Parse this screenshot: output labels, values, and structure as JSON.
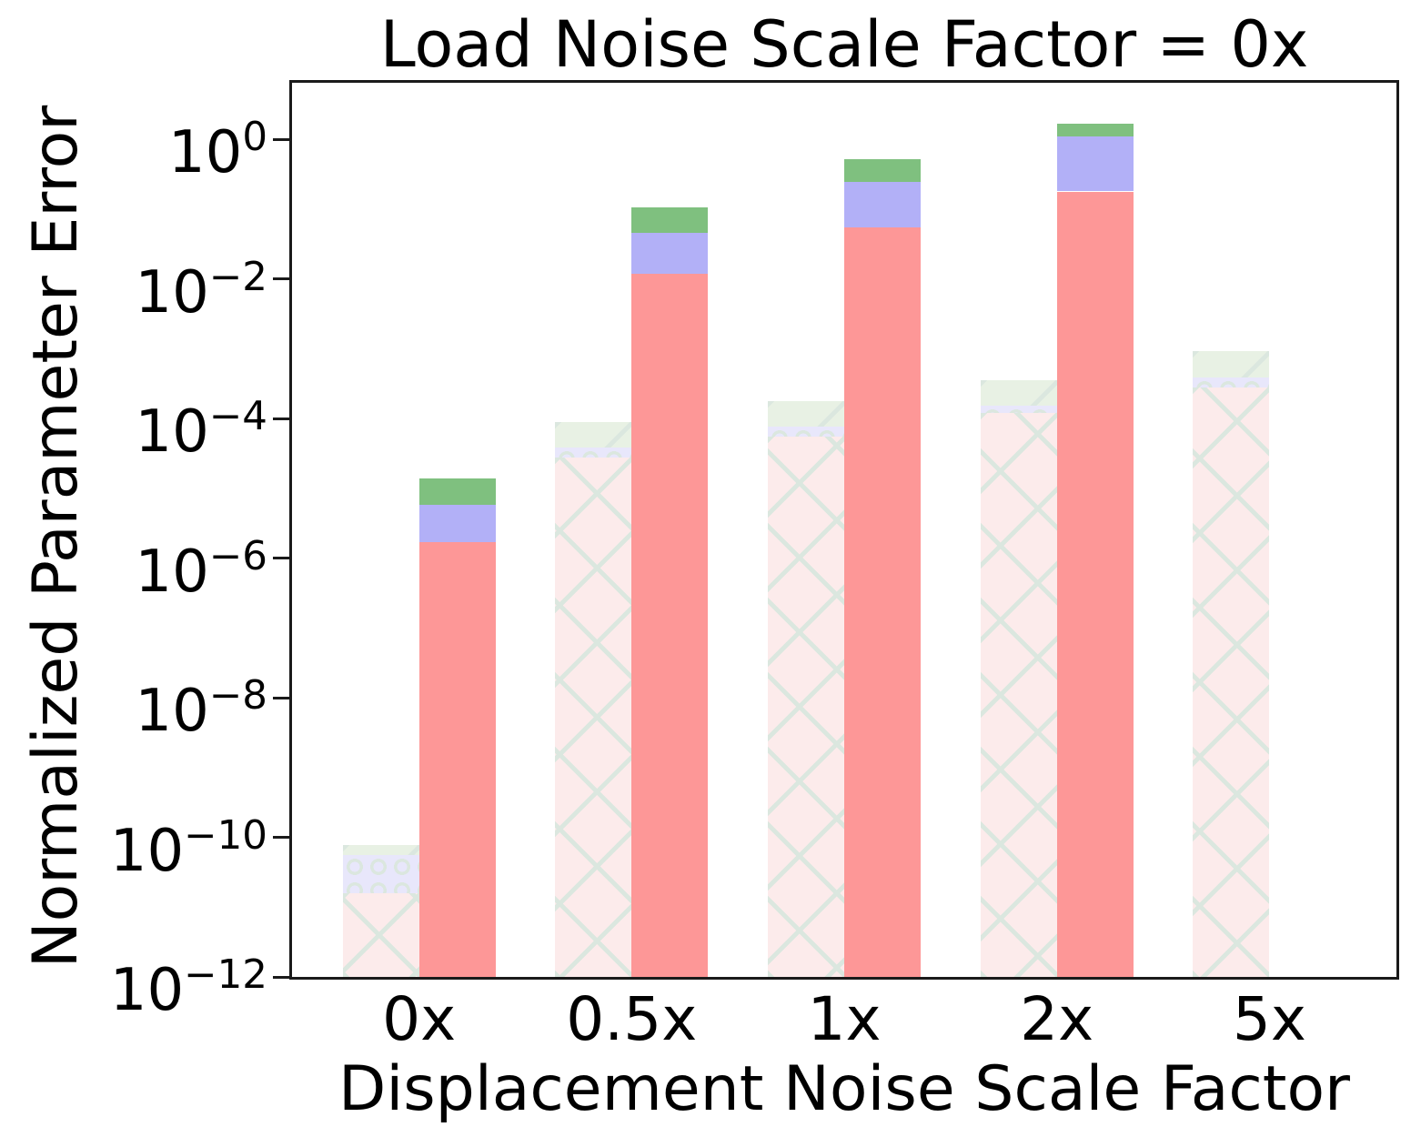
{
  "title": "Load Noise Scale Factor = 0x",
  "chart_data": {
    "type": "bar",
    "subtype": "grouped-stacked-log",
    "title": "Load Noise Scale Factor = 0x",
    "xlabel": "Displacement Noise Scale Factor",
    "ylabel": "Normalized Parameter Error",
    "yscale": "log",
    "ylim": [
      1e-12,
      6.5
    ],
    "grid": false,
    "legend": "none-visible",
    "ytick_exponents": [
      0,
      -2,
      -4,
      -6,
      -8,
      -10,
      -12
    ],
    "categories": [
      "0x",
      "0.5x",
      "1x",
      "2x",
      "5x"
    ],
    "segment_order": [
      "red",
      "blue",
      "green"
    ],
    "bar_variants": [
      "hatched-faded (left bar)",
      "solid (right bar)"
    ],
    "groups": [
      {
        "category": "0x",
        "hatched": {
          "red_top": 1.6e-11,
          "blue_top": 5.6e-11,
          "total": 7.8e-11
        },
        "solid": {
          "red_top": 1.7e-06,
          "blue_top": 5.8e-06,
          "total": 1.4e-05
        }
      },
      {
        "category": "0.5x",
        "hatched": {
          "red_top": 2.8e-05,
          "blue_top": 3.8e-05,
          "total": 9e-05
        },
        "solid": {
          "red_top": 0.012,
          "blue_top": 0.046,
          "total": 0.105
        }
      },
      {
        "category": "1x",
        "hatched": {
          "red_top": 5.6e-05,
          "blue_top": 7.8e-05,
          "total": 0.00018
        },
        "solid": {
          "red_top": 0.055,
          "blue_top": 0.25,
          "total": 0.52
        }
      },
      {
        "category": "2x",
        "hatched": {
          "red_top": 0.00012,
          "blue_top": 0.000155,
          "total": 0.00036
        },
        "solid": {
          "red_top": 0.18,
          "blue_top": 1.1,
          "total": 1.7
        }
      },
      {
        "category": "5x",
        "hatched": {
          "red_top": 0.00028,
          "blue_top": 0.00039,
          "total": 0.00093
        },
        "solid": null
      }
    ],
    "colors": {
      "solid_red": "#fd9797",
      "solid_blue": "#b2b0f7",
      "solid_green": "#7fc07f",
      "hatched_red": "#fcebeb",
      "hatched_blue": "#e8e7fb",
      "hatched_green": "#e8f1e4",
      "hatch_line": "#dbe7df",
      "spine": "#1a1a1a"
    }
  }
}
